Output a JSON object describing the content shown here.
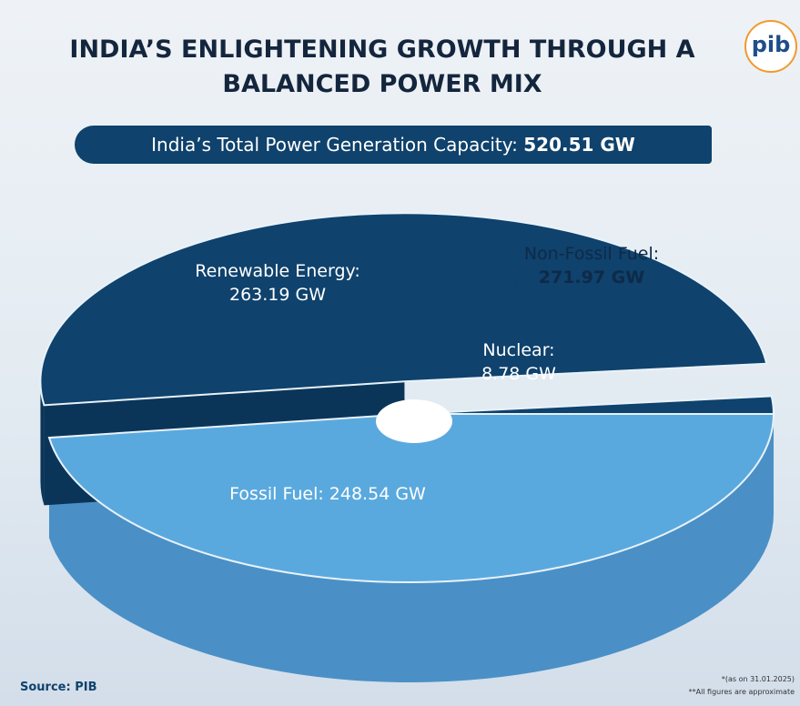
{
  "header": {
    "title": "INDIA’S ENLIGHTENING GROWTH THROUGH A BALANCED POWER MIX",
    "logo": "pib"
  },
  "banner": {
    "text": "India’s Total Power Generation Capacity:",
    "total": "520.51 GW"
  },
  "chart_data": {
    "type": "pie",
    "categories": [
      "Fossil Fuel:",
      "Renewable Energy:",
      "Nuclear:"
    ],
    "values": [
      248.54,
      263.19,
      8.78
    ],
    "value_labels": [
      "248.54 GW",
      "263.19 GW",
      "8.78 GW"
    ],
    "colors": [
      "#5aa9de",
      "#0f426c",
      "#0f426c"
    ],
    "group": {
      "name": "Non-Fossil Fuel:",
      "value_label": "271.97 GW"
    }
  },
  "footer": {
    "source": "Source: PIB",
    "note1": "*(as on 31.01.2025)",
    "note2": "**All figures are approximate"
  }
}
